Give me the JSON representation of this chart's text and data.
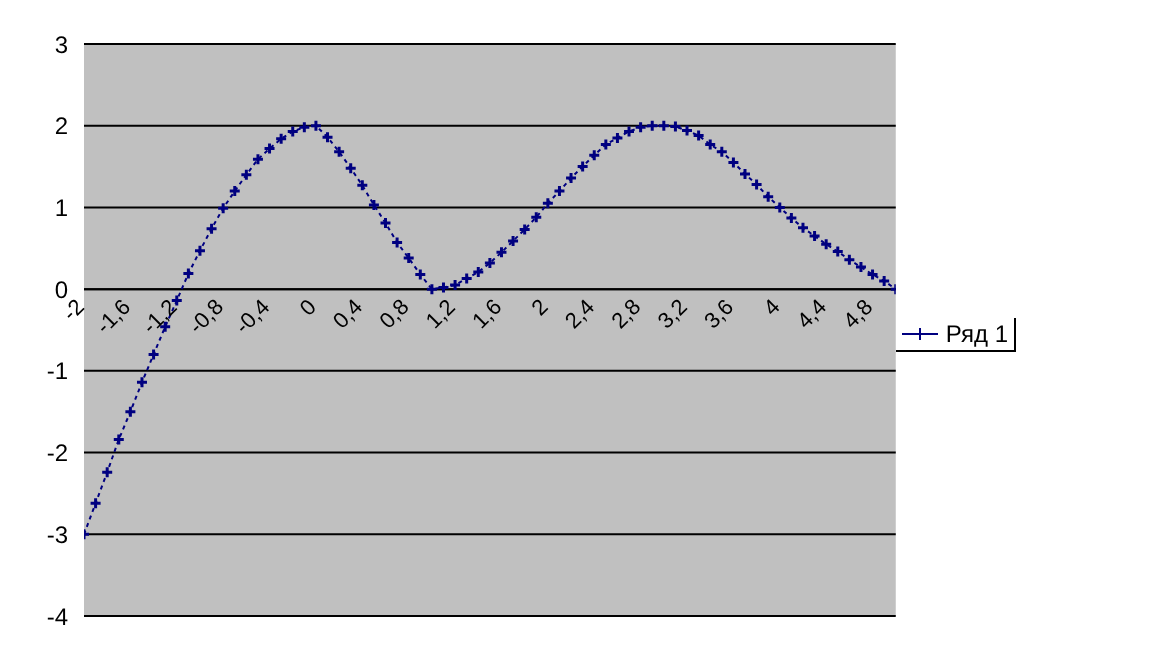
{
  "chart_data": {
    "type": "line",
    "categories": [
      "-2",
      null,
      null,
      null,
      "-1,6",
      null,
      null,
      null,
      "-1,2",
      null,
      null,
      null,
      "-0,8",
      null,
      null,
      null,
      "-0,4",
      null,
      null,
      null,
      "0",
      null,
      null,
      null,
      "0,4",
      null,
      null,
      null,
      "0,8",
      null,
      null,
      null,
      "1,2",
      null,
      null,
      null,
      "1,6",
      null,
      null,
      null,
      "2",
      null,
      null,
      null,
      "2,4",
      null,
      null,
      null,
      "2,8",
      null,
      null,
      null,
      "3,2",
      null,
      null,
      null,
      "3,6",
      null,
      null,
      null,
      "4",
      null,
      null,
      null,
      "4,4",
      null,
      null,
      null,
      "4,8",
      null,
      null
    ],
    "series": [
      {
        "name": "Ряд 1",
        "color": "#000080",
        "values": [
          -3,
          -2.62,
          -2.24,
          -1.84,
          -1.5,
          -1.14,
          -0.8,
          -0.46,
          -0.14,
          0.19,
          0.47,
          0.74,
          0.99,
          1.2,
          1.4,
          1.59,
          1.72,
          1.84,
          1.93,
          1.98,
          2,
          1.86,
          1.68,
          1.48,
          1.27,
          1.03,
          0.81,
          0.57,
          0.38,
          0.18,
          0,
          0.02,
          0.05,
          0.13,
          0.21,
          0.32,
          0.45,
          0.59,
          0.73,
          0.88,
          1.05,
          1.2,
          1.36,
          1.5,
          1.64,
          1.77,
          1.85,
          1.93,
          1.98,
          2,
          2,
          1.99,
          1.94,
          1.88,
          1.77,
          1.68,
          1.55,
          1.41,
          1.28,
          1.13,
          1,
          0.87,
          0.75,
          0.65,
          0.55,
          0.46,
          0.36,
          0.27,
          0.18,
          0.1,
          0
        ]
      }
    ],
    "ylim": [
      -4,
      3
    ],
    "yticks": [
      -4,
      -3,
      -2,
      -1,
      0,
      1,
      2,
      3
    ],
    "grid": "y",
    "legend": "right",
    "marker": "cross",
    "line_style": "dotted"
  }
}
